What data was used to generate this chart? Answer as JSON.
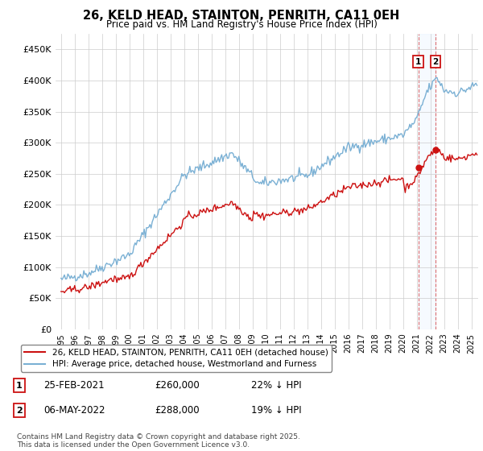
{
  "title": "26, KELD HEAD, STAINTON, PENRITH, CA11 0EH",
  "subtitle": "Price paid vs. HM Land Registry's House Price Index (HPI)",
  "ylim": [
    0,
    475000
  ],
  "yticks": [
    0,
    50000,
    100000,
    150000,
    200000,
    250000,
    300000,
    350000,
    400000,
    450000
  ],
  "ytick_labels": [
    "£0",
    "£50K",
    "£100K",
    "£150K",
    "£200K",
    "£250K",
    "£300K",
    "£350K",
    "£400K",
    "£450K"
  ],
  "hpi_color": "#7ab0d4",
  "price_color": "#cc1111",
  "vline_color": "#cc1111",
  "span_color": "#ddeeff",
  "transaction1_year": 2021.12,
  "transaction2_year": 2022.37,
  "transaction1_price": 260000,
  "transaction2_price": 288000,
  "legend_label_price": "26, KELD HEAD, STAINTON, PENRITH, CA11 0EH (detached house)",
  "legend_label_hpi": "HPI: Average price, detached house, Westmorland and Furness",
  "ann1_label": "1",
  "ann2_label": "2",
  "ann1_date": "25-FEB-2021",
  "ann1_price": "£260,000",
  "ann1_pct": "22% ↓ HPI",
  "ann2_date": "06-MAY-2022",
  "ann2_price": "£288,000",
  "ann2_pct": "19% ↓ HPI",
  "footer": "Contains HM Land Registry data © Crown copyright and database right 2025.\nThis data is licensed under the Open Government Licence v3.0.",
  "bg_color": "#ffffff",
  "grid_color": "#cccccc"
}
